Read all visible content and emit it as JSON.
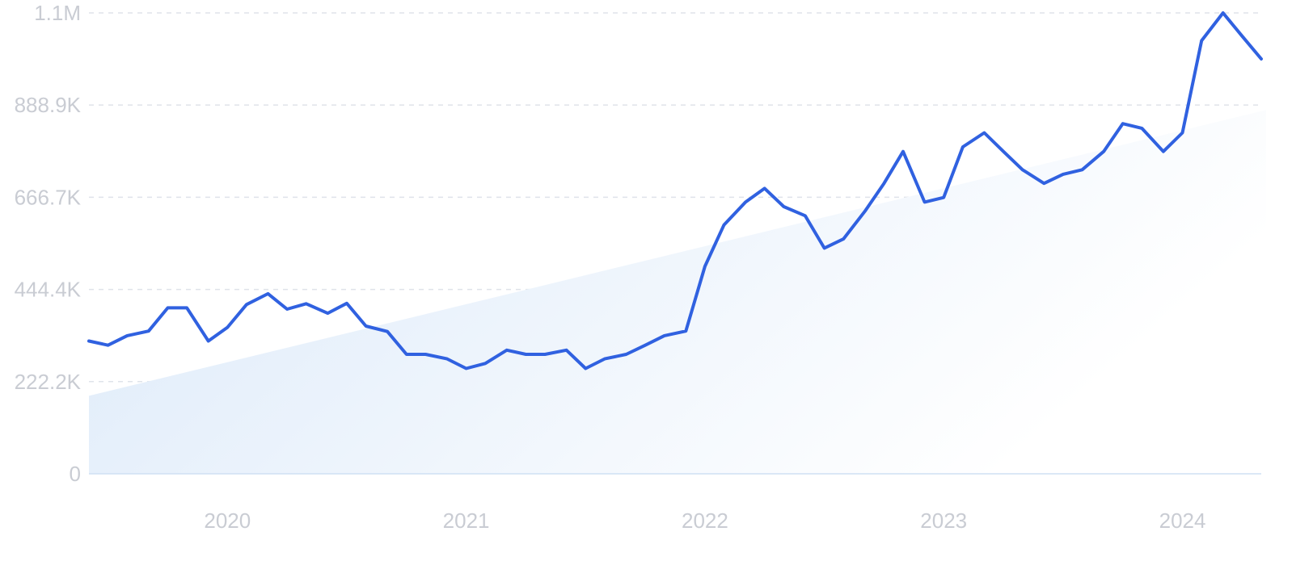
{
  "chart_data": {
    "type": "line",
    "title": "",
    "xlabel": "",
    "ylabel": "",
    "y_ticks": [
      "0",
      "222.2K",
      "444.4K",
      "666.7K",
      "888.9K",
      "1.1M"
    ],
    "y_tick_values": [
      0,
      222200,
      444400,
      666700,
      888900,
      1111000
    ],
    "x_ticks": [
      "2020",
      "2021",
      "2022",
      "2023",
      "2024"
    ],
    "x_tick_values": [
      2020,
      2021,
      2022,
      2023,
      2024
    ],
    "ylim": [
      0,
      1111000
    ],
    "xlim": [
      2019.42,
      2024.33
    ],
    "grid": true,
    "legend": "none",
    "colors": {
      "line": "#3061e0",
      "trend_fill_top": "#dbe9f9",
      "trend_fill_bottom": "#ffffff"
    },
    "series": [
      {
        "values": [
          [
            2019.42,
            320000
          ],
          [
            2019.5,
            310000
          ],
          [
            2019.58,
            333000
          ],
          [
            2019.67,
            344000
          ],
          [
            2019.75,
            400000
          ],
          [
            2019.83,
            400000
          ],
          [
            2019.92,
            320000
          ],
          [
            2020.0,
            353000
          ],
          [
            2020.08,
            408000
          ],
          [
            2020.17,
            434000
          ],
          [
            2020.25,
            397000
          ],
          [
            2020.33,
            410000
          ],
          [
            2020.42,
            387000
          ],
          [
            2020.5,
            411000
          ],
          [
            2020.58,
            356000
          ],
          [
            2020.67,
            343000
          ],
          [
            2020.75,
            288000
          ],
          [
            2020.83,
            288000
          ],
          [
            2020.92,
            277000
          ],
          [
            2021.0,
            254000
          ],
          [
            2021.08,
            266000
          ],
          [
            2021.17,
            298000
          ],
          [
            2021.25,
            288000
          ],
          [
            2021.33,
            288000
          ],
          [
            2021.42,
            298000
          ],
          [
            2021.5,
            254000
          ],
          [
            2021.58,
            277000
          ],
          [
            2021.67,
            288000
          ],
          [
            2021.75,
            310000
          ],
          [
            2021.83,
            333000
          ],
          [
            2021.92,
            344000
          ],
          [
            2022.0,
            500000
          ],
          [
            2022.08,
            600000
          ],
          [
            2022.17,
            655000
          ],
          [
            2022.25,
            688000
          ],
          [
            2022.33,
            644000
          ],
          [
            2022.42,
            622000
          ],
          [
            2022.5,
            544000
          ],
          [
            2022.58,
            566000
          ],
          [
            2022.67,
            633000
          ],
          [
            2022.75,
            700000
          ],
          [
            2022.83,
            777000
          ],
          [
            2022.92,
            655000
          ],
          [
            2023.0,
            666000
          ],
          [
            2023.08,
            788000
          ],
          [
            2023.17,
            822000
          ],
          [
            2023.25,
            777000
          ],
          [
            2023.33,
            733000
          ],
          [
            2023.42,
            700000
          ],
          [
            2023.5,
            722000
          ],
          [
            2023.58,
            733000
          ],
          [
            2023.67,
            777000
          ],
          [
            2023.75,
            844000
          ],
          [
            2023.83,
            833000
          ],
          [
            2023.92,
            777000
          ],
          [
            2024.0,
            822000
          ],
          [
            2024.08,
            1044000
          ],
          [
            2024.17,
            1111000
          ],
          [
            2024.25,
            1055000
          ],
          [
            2024.33,
            1000000
          ]
        ]
      }
    ],
    "trend_area": {
      "start": [
        2019.42,
        188000
      ],
      "end": [
        2024.33,
        877000
      ]
    }
  }
}
